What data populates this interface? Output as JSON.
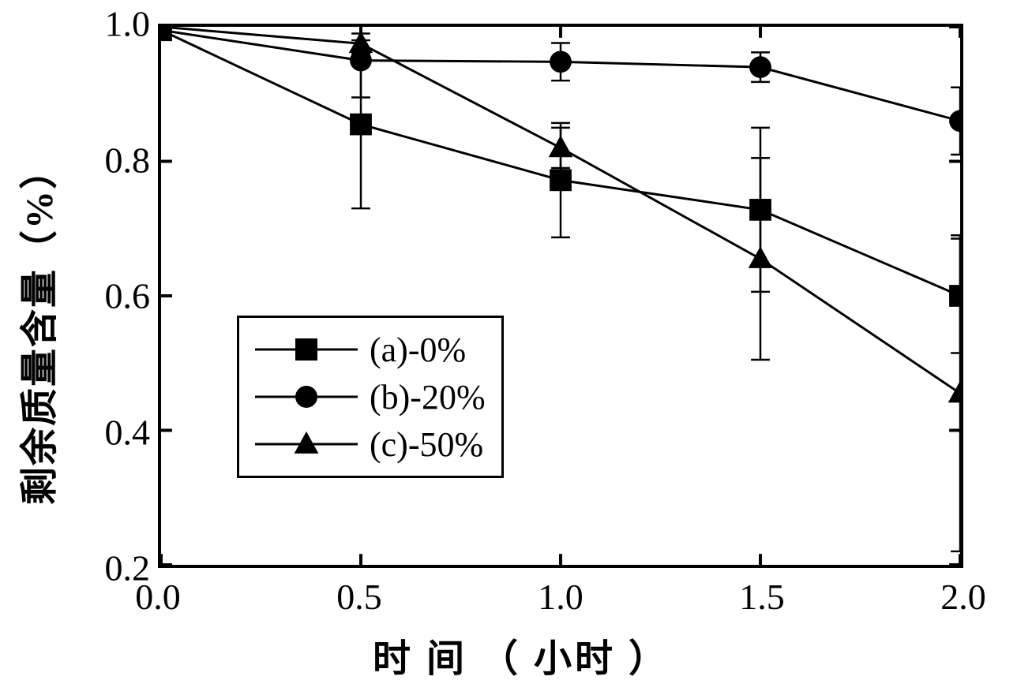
{
  "chart": {
    "type": "line",
    "xlabel": "时 间 （ 小时 ）",
    "ylabel": "剩余质量含量（%）",
    "xlim": [
      0.0,
      2.0
    ],
    "ylim": [
      0.2,
      1.0
    ],
    "xticks": [
      0.0,
      0.5,
      1.0,
      1.5,
      2.0
    ],
    "yticks": [
      0.2,
      0.4,
      0.6,
      0.8,
      1.0
    ],
    "xtick_labels": [
      "0.0",
      "0.5",
      "1.0",
      "1.5",
      "2.0"
    ],
    "ytick_labels": [
      "0.2",
      "0.4",
      "0.6",
      "0.8",
      "1.0"
    ],
    "label_fontsize": 48,
    "tick_fontsize": 46,
    "legend_fontsize": 44,
    "border_width": 4,
    "line_width": 3,
    "marker_size": 28,
    "background_color": "#ffffff",
    "line_color": "#000000",
    "marker_color": "#000000",
    "border_color": "#000000",
    "legend_position": "center-left",
    "series": [
      {
        "name": "a",
        "label": "(a)-0%",
        "marker": "square",
        "x": [
          0.0,
          0.5,
          1.0,
          1.5,
          2.0
        ],
        "y": [
          0.995,
          0.855,
          0.772,
          0.728,
          0.6
        ],
        "yerr": [
          0.0,
          0.125,
          0.085,
          0.122,
          0.085
        ]
      },
      {
        "name": "b",
        "label": "(b)-20%",
        "marker": "circle",
        "x": [
          0.0,
          0.5,
          1.0,
          1.5,
          2.0
        ],
        "y": [
          0.995,
          0.95,
          0.948,
          0.94,
          0.86
        ],
        "yerr": [
          0.0,
          0.055,
          0.028,
          0.022,
          0.05
        ]
      },
      {
        "name": "c",
        "label": "(c)-50%",
        "marker": "triangle",
        "x": [
          0.0,
          0.5,
          1.0,
          1.5,
          2.0
        ],
        "y": [
          1.0,
          0.975,
          0.82,
          0.655,
          0.455
        ],
        "yerr": [
          0.0,
          0.015,
          0.03,
          0.15,
          0.235
        ]
      }
    ]
  }
}
